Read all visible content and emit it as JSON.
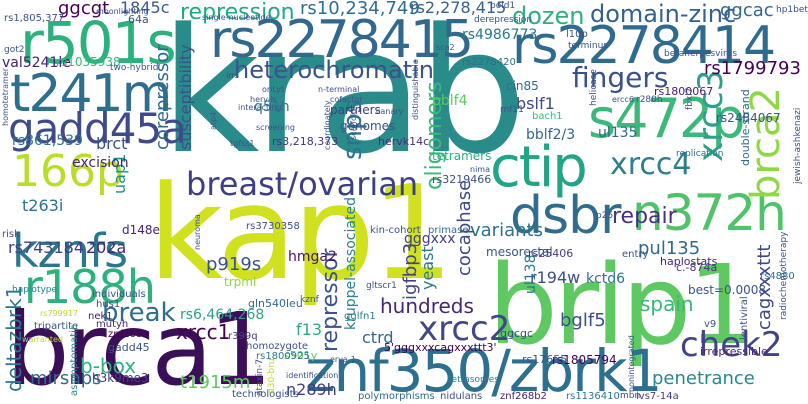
{
  "words": [
    {
      "text": "krab",
      "color": "#2a8c8a"
    },
    {
      "text": "kap1",
      "color": "#cfe11f"
    },
    {
      "text": "brca1",
      "color": "#3b0f57"
    },
    {
      "text": "brip1",
      "color": "#5ec962"
    },
    {
      "text": "znf350/zbrk1",
      "color": "#2c6f8e"
    },
    {
      "text": "rs2278415",
      "color": "#31688e"
    },
    {
      "text": "rs2278414",
      "color": "#2f6b8e"
    },
    {
      "text": "r501s",
      "color": "#2cb17e"
    },
    {
      "text": "t241m",
      "color": "#2e6e8e"
    },
    {
      "text": "gadd45a",
      "color": "#3e4a89"
    },
    {
      "text": "s472p",
      "color": "#3ab97a"
    },
    {
      "text": "ctip",
      "color": "#21a585"
    },
    {
      "text": "166p",
      "color": "#b8de29"
    },
    {
      "text": "kznfs",
      "color": "#2a788e"
    },
    {
      "text": "r188h",
      "color": "#2db27d"
    },
    {
      "text": "dsbr",
      "color": "#2e6d8e"
    },
    {
      "text": "n372h",
      "color": "#4ec36b"
    },
    {
      "text": "breast/ovarian",
      "color": "#3d3e86"
    },
    {
      "text": "chek2",
      "color": "#414287"
    },
    {
      "text": "xrcc2",
      "color": "#404688"
    },
    {
      "text": "brca2",
      "color": "#8fd744"
    },
    {
      "text": "xrcc3",
      "color": "#2f9f89"
    },
    {
      "text": "xrcc4",
      "color": "#2d7e8e"
    },
    {
      "text": "fingers",
      "color": "#3b518b"
    },
    {
      "text": "domain-zinc",
      "color": "#355f8d"
    },
    {
      "text": "heterochromatin",
      "color": "#3a538b"
    },
    {
      "text": "repression",
      "color": "#22a884"
    },
    {
      "text": "dozen",
      "color": "#30ae80"
    },
    {
      "text": "rs1799793",
      "color": "#440154"
    },
    {
      "text": "ggcac",
      "color": "#31668e"
    },
    {
      "text": "rs10,234,749",
      "color": "#2e6f8e"
    },
    {
      "text": "rs2,278,415",
      "color": "#34618d"
    },
    {
      "text": "ggcgt",
      "color": "#440154"
    },
    {
      "text": "1845c",
      "color": "#375b8d"
    },
    {
      "text": "rs4986773",
      "color": "#2a778e"
    },
    {
      "text": "break",
      "color": "#2f6c8e"
    },
    {
      "text": "repair",
      "color": "#46307e"
    },
    {
      "text": "snps",
      "color": "#2c728e"
    },
    {
      "text": "oligomers",
      "color": "#39b87a"
    },
    {
      "text": "xrcc1",
      "color": "#440154"
    },
    {
      "text": "hundreds",
      "color": "#482677"
    },
    {
      "text": "repressor",
      "color": "#3b528b"
    },
    {
      "text": "spain",
      "color": "#35b779"
    },
    {
      "text": "bglf5",
      "color": "#3d4e8a"
    },
    {
      "text": "deltazbrk1",
      "color": "#2b748e"
    },
    {
      "text": "mirsnps",
      "color": "#30698e"
    },
    {
      "text": "b-box",
      "color": "#2eb37c"
    },
    {
      "text": "t1915m",
      "color": "#61c960"
    },
    {
      "text": "n289h",
      "color": "#433d84"
    },
    {
      "text": "penetrance",
      "color": "#23898e"
    },
    {
      "text": "cagxxxttt",
      "color": "#3f4788"
    },
    {
      "text": "pul135",
      "color": "#31688e"
    },
    {
      "text": "variants",
      "color": "#2c738e"
    },
    {
      "text": "cocaphase",
      "color": "#3e4989"
    },
    {
      "text": "corepressor",
      "color": "#2f6b8e"
    },
    {
      "text": "susceptibility",
      "color": "#3b518b"
    },
    {
      "text": "igfbp3",
      "color": "#414487"
    },
    {
      "text": "yeast",
      "color": "#2a778e"
    },
    {
      "text": "kruppel-associated",
      "color": "#25848e"
    },
    {
      "text": "gggxxx",
      "color": "#433e85"
    },
    {
      "text": "hmga2",
      "color": "#471365"
    },
    {
      "text": "p919s",
      "color": "#3b528b"
    },
    {
      "text": "f13",
      "color": "#29af7f"
    },
    {
      "text": "ctrd",
      "color": "#31678e"
    },
    {
      "text": "rs6,464,268",
      "color": "#2f9f89"
    },
    {
      "text": "rs743184",
      "color": "#433e85"
    },
    {
      "text": "202a",
      "color": "#482475"
    },
    {
      "text": "t263i",
      "color": "#2c738e"
    },
    {
      "text": "uap1",
      "color": "#228d8d"
    },
    {
      "text": "brct",
      "color": "#3b528b"
    },
    {
      "text": "rs861,539",
      "color": "#2c738e"
    },
    {
      "text": "excision",
      "color": "#482878"
    },
    {
      "text": "val5241le",
      "color": "#482071"
    },
    {
      "text": "rs1035938",
      "color": "#37b878"
    },
    {
      "text": "bblf4",
      "color": "#5dc863"
    },
    {
      "text": "bslf1",
      "color": "#3e4a89"
    },
    {
      "text": "bblf2/3",
      "color": "#31678e"
    },
    {
      "text": "q51h",
      "color": "#2a788e"
    },
    {
      "text": "rs3,218,373",
      "color": "#46327e"
    },
    {
      "text": "hervk14c",
      "color": "#462f7e"
    },
    {
      "text": "tetramers",
      "color": "#2ab07f"
    },
    {
      "text": "ul135",
      "color": "#31688e"
    },
    {
      "text": "r194w",
      "color": "#3e4c8a"
    },
    {
      "text": "kctd6",
      "color": "#2c728e"
    },
    {
      "text": "mesorectal",
      "color": "#3a548c"
    },
    {
      "text": "ul138",
      "color": "#2a788e"
    },
    {
      "text": "rs3219466",
      "color": "#3b528b"
    },
    {
      "text": "rs25406",
      "color": "#433e85"
    },
    {
      "text": "rs2484067",
      "color": "#3b518b"
    },
    {
      "text": "rs1800067",
      "color": "#481c6e"
    },
    {
      "text": "haplostats",
      "color": "#482677"
    },
    {
      "text": "gglfn1",
      "color": "#26828e"
    },
    {
      "text": "rs1805794",
      "color": "#440154"
    },
    {
      "text": "rs17655",
      "color": "#3b528b"
    },
    {
      "text": "ggcgc",
      "color": "#3e4a89"
    },
    {
      "text": "gadd45",
      "color": "#3b518b"
    },
    {
      "text": "znf268a",
      "color": "#440154"
    },
    {
      "text": "h3k9me3",
      "color": "#433e85"
    },
    {
      "text": "mutyh",
      "color": "#482677"
    },
    {
      "text": "nek1",
      "color": "#482071"
    },
    {
      "text": "gln540leu",
      "color": "#2f6c8e"
    },
    {
      "text": "s501y",
      "color": "#5ec962"
    },
    {
      "text": "r399q",
      "color": "#433e85"
    },
    {
      "text": "homozygote",
      "color": "#3b528b"
    },
    {
      "text": "rs1800925",
      "color": "#2a788e"
    },
    {
      "text": "genomes",
      "color": "#3b518b"
    },
    {
      "text": "partners",
      "color": "#443b84"
    },
    {
      "text": "polymorphisms",
      "color": "#2f6b8e"
    },
    {
      "text": "technologists",
      "color": "#3b518b"
    },
    {
      "text": "tetrasomes",
      "color": "#25848e"
    },
    {
      "text": "nidulans",
      "color": "#3b518b"
    },
    {
      "text": "znf268b2",
      "color": "#481c6e"
    },
    {
      "text": "rs1136410",
      "color": "#2a788e"
    },
    {
      "text": "ivs7-14a",
      "color": "#443b84"
    },
    {
      "text": "mbn",
      "color": "#3b518b"
    },
    {
      "text": "irrepressible",
      "color": "#482677"
    },
    {
      "text": "rs4880",
      "color": "#2c738e"
    },
    {
      "text": "best=0.0008",
      "color": "#3b528b"
    },
    {
      "text": "c.-874a",
      "color": "#453581"
    },
    {
      "text": "entry",
      "color": "#3b528b"
    },
    {
      "text": "replication",
      "color": "#2f6c8e"
    },
    {
      "text": "rs3730358",
      "color": "#3b528b"
    },
    {
      "text": "primase",
      "color": "#2f6c8e"
    },
    {
      "text": "kin-cohort",
      "color": "#3b528b"
    },
    {
      "text": "kznf",
      "color": "#3b528b"
    },
    {
      "text": "trpml",
      "color": "#8fd744"
    },
    {
      "text": "hus1",
      "color": "#3b528b"
    },
    {
      "text": "d148e",
      "color": "#482475"
    },
    {
      "text": "risk",
      "color": "#3b528b"
    },
    {
      "text": "individuals",
      "color": "#3b528b"
    },
    {
      "text": "tripartite",
      "color": "#3b528b"
    },
    {
      "text": "haplotype",
      "color": "#26828e"
    },
    {
      "text": "asymptomatic",
      "color": "#25848e"
    },
    {
      "text": "d30-bru",
      "color": "#b8de29"
    },
    {
      "text": "ataxin-7",
      "color": "#3b528b"
    },
    {
      "text": "gltscr1",
      "color": "#3b528b"
    },
    {
      "text": "p25r",
      "color": "#3b528b"
    },
    {
      "text": "v9",
      "color": "#3b528b"
    },
    {
      "text": "lentiviral",
      "color": "#3b528b"
    },
    {
      "text": "radiochemotherapy",
      "color": "#3b528b"
    },
    {
      "text": "jewish-ashkenazi",
      "color": "#3b528b"
    },
    {
      "text": "double-strand",
      "color": "#2f6c8e"
    },
    {
      "text": "cin85",
      "color": "#2f6c8e"
    },
    {
      "text": "bach1",
      "color": "#3ab97a"
    },
    {
      "text": "helicase",
      "color": "#3b528b"
    },
    {
      "text": "fbxl7",
      "color": "#3b528b"
    },
    {
      "text": "r280h",
      "color": "#3b528b"
    },
    {
      "text": "rnf11",
      "color": "#3b528b"
    },
    {
      "text": "rs2278420",
      "color": "#2f6c8e"
    },
    {
      "text": "l10p",
      "color": "#3b528b"
    },
    {
      "text": "terminus",
      "color": "#3b528b"
    },
    {
      "text": "betaherpesvirus",
      "color": "#3b528b"
    },
    {
      "text": "hp1beta",
      "color": "#3b528b"
    },
    {
      "text": "pold1",
      "color": "#3b528b"
    },
    {
      "text": "derepression",
      "color": "#3b528b"
    },
    {
      "text": "single-nucleotide",
      "color": "#3b528b"
    },
    {
      "text": "moonlighting",
      "color": "#3b528b"
    },
    {
      "text": "64a",
      "color": "#3b528b"
    },
    {
      "text": "rs1,805,377",
      "color": "#3b528b"
    },
    {
      "text": "got2",
      "color": "#3b528b"
    },
    {
      "text": "homotetramer",
      "color": "#3b528b"
    },
    {
      "text": "two-hybrid",
      "color": "#3b528b"
    },
    {
      "text": "herv-h",
      "color": "#3b528b"
    },
    {
      "text": "interacting",
      "color": "#3b528b"
    },
    {
      "text": "oriLyt",
      "color": "#3b528b"
    },
    {
      "text": "n-terminal",
      "color": "#3b528b"
    },
    {
      "text": "cofactor",
      "color": "#3b528b"
    },
    {
      "text": "distinguishable",
      "color": "#3b528b"
    },
    {
      "text": "canary",
      "color": "#3b528b"
    },
    {
      "text": "irrs",
      "color": "#3b528b"
    },
    {
      "text": "screening",
      "color": "#3b528b"
    },
    {
      "text": "atp4",
      "color": "#3b528b"
    },
    {
      "text": "tgfss1",
      "color": "#3b528b"
    },
    {
      "text": "coordinately",
      "color": "#3b528b"
    },
    {
      "text": "scaffold",
      "color": "#3b528b"
    },
    {
      "text": "neuroma",
      "color": "#3b528b"
    },
    {
      "text": "warranted",
      "color": "#b8de29"
    },
    {
      "text": "rs799917",
      "color": "#b8de29"
    },
    {
      "text": "erva-1",
      "color": "#3b528b"
    },
    {
      "text": "5'gggxxxcagxxxttt3'",
      "color": "#440154"
    },
    {
      "text": "nonintegrated",
      "color": "#3b528b"
    },
    {
      "text": "identification",
      "color": "#3b528b"
    },
    {
      "text": "sca2",
      "color": "#3b528b"
    },
    {
      "text": "ercc6",
      "color": "#3b528b"
    },
    {
      "text": "nima",
      "color": "#3b528b"
    }
  ]
}
